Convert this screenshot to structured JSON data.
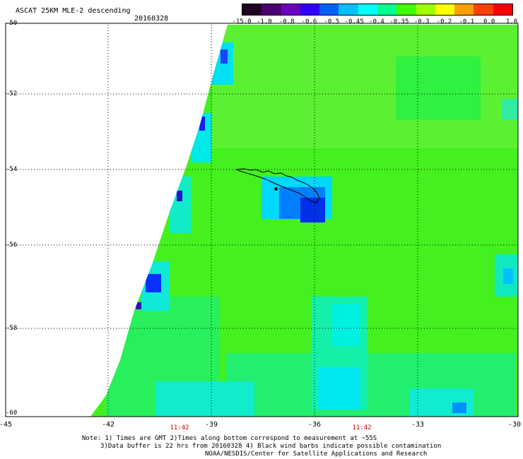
{
  "header": {
    "title": "ASCAT 25KM MLE-2 descending",
    "date": "20160328"
  },
  "colorbar": {
    "labels": [
      "-15.0",
      "-1.0",
      "-0.8",
      "-0.6",
      "-0.5",
      "-0.45",
      "-0.4",
      "-0.35",
      "-0.3",
      "-0.2",
      "-0.1",
      "0.0",
      "1.0"
    ],
    "colors": [
      "#200020",
      "#4a0070",
      "#6a00c0",
      "#3000ff",
      "#0060ff",
      "#00c0ff",
      "#00ffff",
      "#00ff90",
      "#40ff00",
      "#a0ff00",
      "#ffff00",
      "#ffa000",
      "#ff4000",
      "#ff0000"
    ]
  },
  "axes": {
    "lat_labels": [
      "-50",
      "-52",
      "-54",
      "-56",
      "-58",
      "-60"
    ],
    "lon_labels": [
      "-45",
      "-42",
      "-39",
      "-36",
      "-33",
      "-30"
    ],
    "times": [
      "11:42",
      "11:42"
    ]
  },
  "notes": {
    "line1": "Note: 1) Times are GMT 2)Times along bottom correspond to measurement at ~55S",
    "line2": "3)Data buffer is 22 hrs from 20160328 4) Black wind barbs indicate possible contamination",
    "line3": "NOAA/NESDIS/Center for Satellite Applications and Research"
  }
}
